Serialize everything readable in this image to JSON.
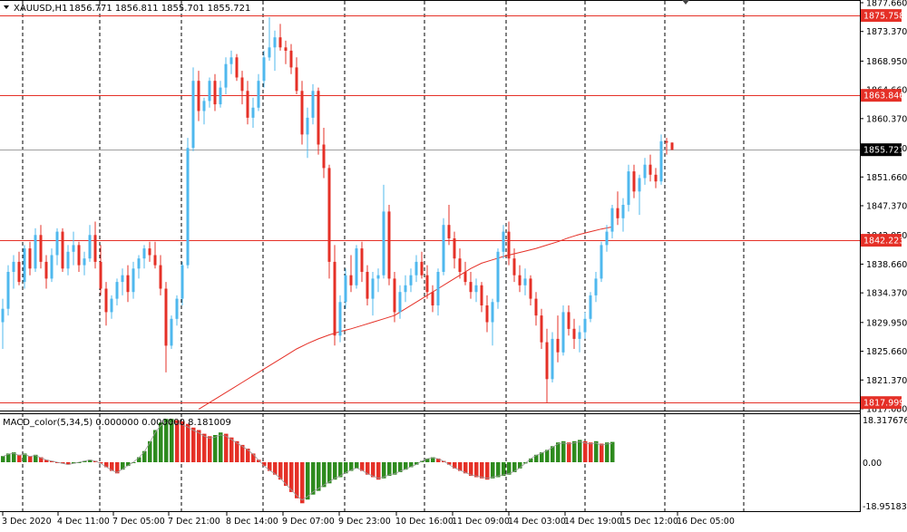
{
  "header": {
    "symbol_label": "XAUUSD,H1",
    "ohlc_text": "1856.771 1856.811 1855.701 1855.721"
  },
  "indicator": {
    "label": "MACD_color(5,34,5) 0.000000 0.000000 8.181009",
    "scale_top": "18.317676",
    "scale_zero": "0.00",
    "scale_bottom": "-18.951839",
    "top_value": 18.317676,
    "bottom_value": -18.951839
  },
  "price_scale": {
    "max": 1877.66,
    "min": 1817.08,
    "ticks": [
      "1877.660",
      "1873.370",
      "1868.950",
      "1864.660",
      "1860.370",
      "1855.950",
      "1851.660",
      "1847.370",
      "1842.950",
      "1838.660",
      "1834.370",
      "1829.950",
      "1825.660",
      "1821.370",
      "1817.080"
    ],
    "tick_values": [
      1877.66,
      1873.37,
      1868.95,
      1864.66,
      1860.37,
      1855.95,
      1851.66,
      1847.37,
      1842.95,
      1838.66,
      1834.37,
      1829.95,
      1825.66,
      1821.37,
      1817.08
    ]
  },
  "level_lines": [
    {
      "label": "1875.758",
      "value": 1875.758
    },
    {
      "label": "1863.846",
      "value": 1863.846
    },
    {
      "label": "1842.223",
      "value": 1842.223
    },
    {
      "label": "1817.999",
      "value": 1817.999
    }
  ],
  "current_price": {
    "label": "1855.721",
    "value": 1855.721
  },
  "time_axis": [
    "3 Dec 2020",
    "4 Dec 11:00",
    "7 Dec 05:00",
    "7 Dec 21:00",
    "8 Dec 14:00",
    "9 Dec 07:00",
    "9 Dec 23:00",
    "10 Dec 16:00",
    "11 Dec 09:00",
    "14 Dec 03:00",
    "14 Dec 19:00",
    "15 Dec 12:00",
    "16 Dec 05:00"
  ],
  "colors": {
    "bull": "#4fb8ee",
    "bear": "#e53027",
    "level": "#e53027",
    "ma": "#e53027",
    "macd_up": "#2e8b1e",
    "macd_down": "#e53027",
    "grid": "#000000",
    "current_box": "#000000"
  },
  "chart_data": {
    "type": "candlestick",
    "timeframe": "H1",
    "candles": [
      [
        1830.0,
        1833.5,
        1826.0,
        1832.0
      ],
      [
        1832.0,
        1838.5,
        1831.0,
        1837.5
      ],
      [
        1837.5,
        1840.0,
        1835.0,
        1839.0
      ],
      [
        1839.0,
        1840.5,
        1835.5,
        1836.0
      ],
      [
        1836.0,
        1841.5,
        1835.0,
        1841.0
      ],
      [
        1841.0,
        1842.0,
        1837.0,
        1838.0
      ],
      [
        1838.0,
        1844.0,
        1837.5,
        1843.0
      ],
      [
        1843.0,
        1844.5,
        1838.0,
        1839.0
      ],
      [
        1839.0,
        1840.0,
        1835.0,
        1836.5
      ],
      [
        1836.5,
        1841.0,
        1836.0,
        1840.0
      ],
      [
        1840.0,
        1844.0,
        1838.5,
        1843.5
      ],
      [
        1843.5,
        1844.0,
        1837.5,
        1838.0
      ],
      [
        1838.0,
        1841.5,
        1837.0,
        1840.5
      ],
      [
        1840.5,
        1843.5,
        1838.5,
        1841.5
      ],
      [
        1841.5,
        1842.0,
        1837.5,
        1838.5
      ],
      [
        1838.5,
        1840.5,
        1837.0,
        1839.5
      ],
      [
        1839.5,
        1844.5,
        1839.0,
        1843.0
      ],
      [
        1843.0,
        1845.0,
        1838.0,
        1839.0
      ],
      [
        1839.0,
        1841.5,
        1834.0,
        1835.0
      ],
      [
        1835.0,
        1836.0,
        1829.5,
        1831.5
      ],
      [
        1831.5,
        1834.0,
        1830.5,
        1833.5
      ],
      [
        1833.5,
        1836.5,
        1832.5,
        1836.0
      ],
      [
        1836.0,
        1838.0,
        1834.0,
        1837.0
      ],
      [
        1837.0,
        1838.5,
        1833.0,
        1834.5
      ],
      [
        1834.5,
        1839.0,
        1833.5,
        1838.0
      ],
      [
        1838.0,
        1840.0,
        1836.5,
        1839.5
      ],
      [
        1839.5,
        1841.5,
        1838.0,
        1841.0
      ],
      [
        1841.0,
        1842.0,
        1839.0,
        1840.0
      ],
      [
        1840.0,
        1842.0,
        1838.0,
        1838.5
      ],
      [
        1838.5,
        1840.0,
        1834.0,
        1835.0
      ],
      [
        1835.0,
        1836.0,
        1822.5,
        1826.5
      ],
      [
        1826.5,
        1831.0,
        1826.0,
        1830.5
      ],
      [
        1830.5,
        1834.0,
        1829.5,
        1833.5
      ],
      [
        1833.5,
        1839.0,
        1832.5,
        1838.5
      ],
      [
        1838.5,
        1857.5,
        1838.0,
        1856.0
      ],
      [
        1856.0,
        1868.0,
        1855.5,
        1866.0
      ],
      [
        1866.0,
        1867.5,
        1860.0,
        1861.5
      ],
      [
        1861.5,
        1863.5,
        1859.5,
        1863.0
      ],
      [
        1863.0,
        1866.5,
        1862.0,
        1866.0
      ],
      [
        1866.0,
        1867.0,
        1861.5,
        1862.5
      ],
      [
        1862.5,
        1866.0,
        1862.0,
        1865.0
      ],
      [
        1865.0,
        1869.5,
        1864.0,
        1868.5
      ],
      [
        1868.5,
        1870.5,
        1867.0,
        1869.5
      ],
      [
        1869.5,
        1870.0,
        1866.0,
        1866.5
      ],
      [
        1866.5,
        1867.5,
        1862.5,
        1864.5
      ],
      [
        1864.5,
        1866.0,
        1859.5,
        1860.5
      ],
      [
        1860.5,
        1863.5,
        1859.0,
        1862.0
      ],
      [
        1862.0,
        1867.0,
        1861.5,
        1866.0
      ],
      [
        1866.0,
        1870.5,
        1865.0,
        1869.5
      ],
      [
        1869.5,
        1875.5,
        1869.0,
        1871.0
      ],
      [
        1871.0,
        1873.5,
        1867.5,
        1872.5
      ],
      [
        1872.5,
        1874.5,
        1870.5,
        1871.0
      ],
      [
        1871.0,
        1872.0,
        1868.5,
        1870.5
      ],
      [
        1870.5,
        1871.5,
        1867.0,
        1868.0
      ],
      [
        1868.0,
        1869.5,
        1864.0,
        1864.5
      ],
      [
        1864.5,
        1866.0,
        1856.5,
        1858.0
      ],
      [
        1858.0,
        1862.0,
        1854.5,
        1860.5
      ],
      [
        1860.5,
        1865.5,
        1859.5,
        1864.5
      ],
      [
        1864.5,
        1865.0,
        1855.0,
        1856.5
      ],
      [
        1856.5,
        1859.0,
        1851.5,
        1853.0
      ],
      [
        1853.0,
        1853.5,
        1836.5,
        1839.0
      ],
      [
        1839.0,
        1841.5,
        1826.5,
        1828.0
      ],
      [
        1828.0,
        1834.0,
        1827.0,
        1833.0
      ],
      [
        1833.0,
        1838.0,
        1832.0,
        1837.0
      ],
      [
        1837.0,
        1840.0,
        1834.5,
        1835.5
      ],
      [
        1835.5,
        1841.5,
        1835.0,
        1841.0
      ],
      [
        1841.0,
        1842.0,
        1836.0,
        1837.5
      ],
      [
        1837.5,
        1838.5,
        1832.5,
        1833.5
      ],
      [
        1833.5,
        1837.5,
        1831.0,
        1836.5
      ],
      [
        1836.5,
        1838.0,
        1834.5,
        1837.0
      ],
      [
        1837.0,
        1850.5,
        1836.5,
        1846.5
      ],
      [
        1846.5,
        1847.5,
        1835.5,
        1836.5
      ],
      [
        1836.5,
        1837.5,
        1830.0,
        1831.5
      ],
      [
        1831.5,
        1835.5,
        1830.5,
        1834.5
      ],
      [
        1834.5,
        1837.0,
        1833.0,
        1835.5
      ],
      [
        1835.5,
        1838.0,
        1834.5,
        1837.0
      ],
      [
        1837.0,
        1840.0,
        1836.0,
        1839.0
      ],
      [
        1839.0,
        1840.5,
        1836.5,
        1837.0
      ],
      [
        1837.0,
        1838.5,
        1833.5,
        1834.5
      ],
      [
        1834.5,
        1835.5,
        1831.5,
        1832.5
      ],
      [
        1832.5,
        1838.0,
        1831.0,
        1837.5
      ],
      [
        1837.5,
        1845.5,
        1837.0,
        1844.5
      ],
      [
        1844.5,
        1847.5,
        1841.5,
        1842.5
      ],
      [
        1842.5,
        1843.5,
        1838.0,
        1839.5
      ],
      [
        1839.5,
        1841.0,
        1836.5,
        1837.5
      ],
      [
        1837.5,
        1839.0,
        1835.5,
        1836.0
      ],
      [
        1836.0,
        1837.5,
        1833.5,
        1834.5
      ],
      [
        1834.5,
        1836.5,
        1833.0,
        1835.5
      ],
      [
        1835.5,
        1836.0,
        1831.5,
        1832.5
      ],
      [
        1832.5,
        1834.0,
        1828.5,
        1830.0
      ],
      [
        1830.0,
        1833.5,
        1826.5,
        1833.0
      ],
      [
        1833.0,
        1841.0,
        1832.0,
        1840.5
      ],
      [
        1840.5,
        1844.5,
        1839.5,
        1843.5
      ],
      [
        1843.5,
        1845.0,
        1838.5,
        1839.5
      ],
      [
        1839.5,
        1841.0,
        1836.0,
        1837.0
      ],
      [
        1837.0,
        1838.5,
        1834.5,
        1835.5
      ],
      [
        1835.5,
        1838.0,
        1834.0,
        1836.5
      ],
      [
        1836.5,
        1837.0,
        1832.5,
        1833.5
      ],
      [
        1833.5,
        1834.5,
        1829.5,
        1831.0
      ],
      [
        1831.0,
        1832.0,
        1826.0,
        1827.0
      ],
      [
        1827.0,
        1829.0,
        1818.0,
        1821.5
      ],
      [
        1821.5,
        1828.5,
        1821.0,
        1827.5
      ],
      [
        1827.5,
        1831.0,
        1824.0,
        1825.5
      ],
      [
        1825.5,
        1832.5,
        1825.0,
        1831.5
      ],
      [
        1831.5,
        1832.5,
        1828.0,
        1829.0
      ],
      [
        1829.0,
        1830.5,
        1826.0,
        1827.5
      ],
      [
        1827.5,
        1829.5,
        1825.5,
        1828.5
      ],
      [
        1828.5,
        1831.5,
        1827.5,
        1830.5
      ],
      [
        1830.5,
        1834.5,
        1830.0,
        1834.0
      ],
      [
        1834.0,
        1837.5,
        1833.0,
        1836.5
      ],
      [
        1836.5,
        1842.0,
        1836.0,
        1841.5
      ],
      [
        1841.5,
        1844.5,
        1840.5,
        1843.5
      ],
      [
        1843.5,
        1847.5,
        1842.5,
        1847.0
      ],
      [
        1847.0,
        1849.5,
        1844.5,
        1845.5
      ],
      [
        1845.5,
        1848.5,
        1843.5,
        1847.5
      ],
      [
        1847.5,
        1853.5,
        1846.5,
        1852.5
      ],
      [
        1852.5,
        1853.5,
        1848.5,
        1849.5
      ],
      [
        1849.5,
        1852.0,
        1846.0,
        1851.5
      ],
      [
        1851.5,
        1854.5,
        1850.5,
        1853.5
      ],
      [
        1853.5,
        1855.0,
        1851.0,
        1852.0
      ],
      [
        1852.0,
        1853.0,
        1850.0,
        1851.0
      ],
      [
        1851.0,
        1858.0,
        1850.5,
        1857.0
      ],
      [
        1857.0,
        1857.5,
        1855.0,
        1856.8
      ],
      [
        1856.8,
        1856.8,
        1855.7,
        1855.7
      ]
    ],
    "moving_average_line": {
      "x_start_index": 36,
      "values": [
        1817.0,
        1818.0,
        1819.0,
        1820.0,
        1821.0,
        1822.0,
        1823.0,
        1824.0,
        1825.0,
        1826.0,
        1826.8,
        1827.5,
        1828.1,
        1828.6,
        1829.0,
        1829.5,
        1830.0,
        1830.5,
        1831.0,
        1832.0,
        1833.0,
        1834.0,
        1835.0,
        1836.0,
        1837.0,
        1838.0,
        1838.8,
        1839.3,
        1839.8,
        1840.2,
        1840.6,
        1841.0,
        1841.5,
        1842.0,
        1842.6,
        1843.1,
        1843.5,
        1843.9,
        1844.2
      ]
    },
    "macd_histogram": [
      2.5,
      3.5,
      4.0,
      3.0,
      3.5,
      2.5,
      3.0,
      2.0,
      1.0,
      0.5,
      0.0,
      -0.5,
      -1.0,
      -0.5,
      0.0,
      0.5,
      1.0,
      0.5,
      -0.5,
      -2.0,
      -3.5,
      -4.5,
      -3.0,
      -1.5,
      0.0,
      2.0,
      4.5,
      8.5,
      13.0,
      16.0,
      17.5,
      17.5,
      17.0,
      16.5,
      15.5,
      14.0,
      13.0,
      11.5,
      10.5,
      11.0,
      12.0,
      11.5,
      10.0,
      8.5,
      7.0,
      5.5,
      3.5,
      1.0,
      -1.5,
      -3.5,
      -5.0,
      -7.0,
      -9.5,
      -12.0,
      -14.5,
      -16.5,
      -15.0,
      -13.0,
      -11.5,
      -10.0,
      -8.5,
      -7.0,
      -6.0,
      -4.5,
      -3.5,
      -2.5,
      -3.5,
      -5.0,
      -6.0,
      -7.0,
      -6.5,
      -5.5,
      -5.0,
      -4.0,
      -3.0,
      -2.0,
      -1.0,
      0.5,
      1.5,
      2.0,
      1.5,
      0.5,
      -1.0,
      -2.5,
      -3.5,
      -4.5,
      -5.5,
      -6.0,
      -6.5,
      -7.0,
      -6.5,
      -6.0,
      -5.5,
      -5.0,
      -4.0,
      -2.5,
      -0.5,
      1.5,
      3.0,
      4.0,
      5.0,
      6.5,
      8.0,
      8.5,
      8.0,
      8.5,
      9.0,
      8.5,
      8.0,
      8.5,
      7.5,
      8.0,
      8.2
    ]
  }
}
